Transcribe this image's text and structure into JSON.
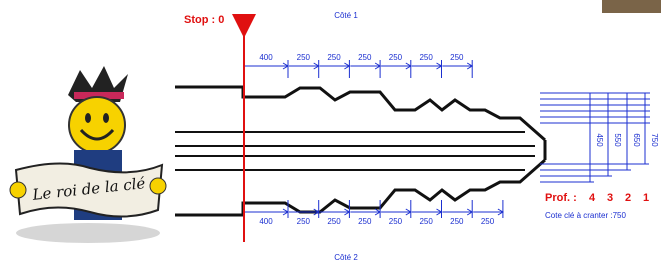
{
  "stop_label": "Stop : 0",
  "side_1": "Côté 1",
  "side_2": "Côté 2",
  "top_dimensions": [
    400,
    250,
    250,
    250,
    250,
    250,
    250
  ],
  "bottom_dimensions": [
    400,
    250,
    250,
    250,
    250,
    250,
    250,
    250
  ],
  "depth_dimensions": [
    450,
    550,
    650,
    750
  ],
  "depth_label": "Prof. :",
  "depth_numbers": [
    4,
    3,
    2,
    1
  ],
  "key_setting": "Cote clé à cranter :750",
  "logo_text": "Le roi de la clé"
}
